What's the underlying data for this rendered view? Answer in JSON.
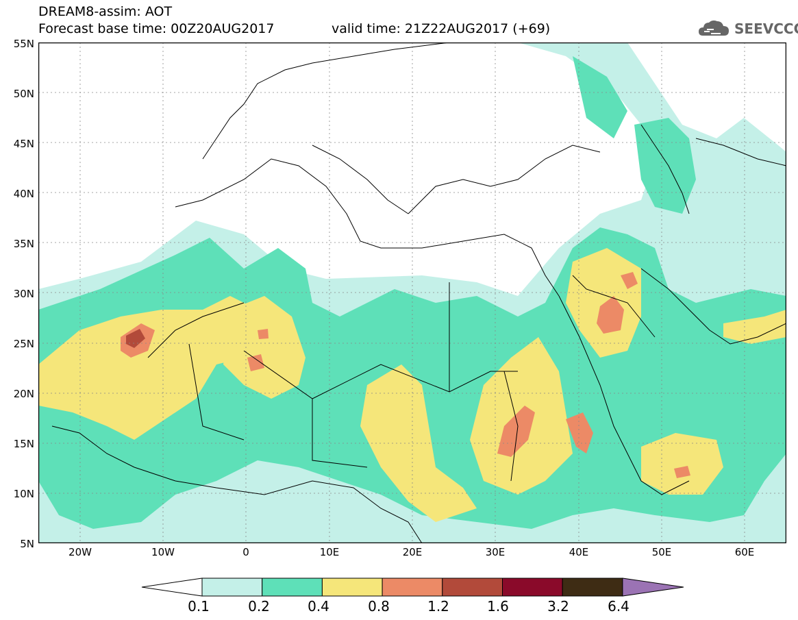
{
  "title": {
    "line1": "DREAM8-assim: AOT",
    "line2": "Forecast base time: 00Z20AUG2017",
    "valid": "valid time: 21Z22AUG2017 (+69)"
  },
  "logo": {
    "icon": "cloud-icon",
    "text": "SEEVCCC"
  },
  "map": {
    "lat_labels": [
      "55N",
      "50N",
      "45N",
      "40N",
      "35N",
      "30N",
      "25N",
      "20N",
      "15N",
      "10N",
      "5N"
    ],
    "lon_labels": [
      "20W",
      "10W",
      "0",
      "10E",
      "20E",
      "30E",
      "40E",
      "50E",
      "60E"
    ],
    "lon_range": [
      -25,
      65
    ],
    "lat_range": [
      5,
      55
    ]
  },
  "colorbar": {
    "labels": [
      "0.1",
      "0.2",
      "0.4",
      "0.8",
      "1.2",
      "1.6",
      "3.2",
      "6.4"
    ],
    "colors": [
      "#ffffff",
      "#c4f0e8",
      "#5ee0b8",
      "#f5e67a",
      "#ec8a66",
      "#b24a3a",
      "#8a0a2a",
      "#3e2c14",
      "#9b73b4"
    ]
  }
}
